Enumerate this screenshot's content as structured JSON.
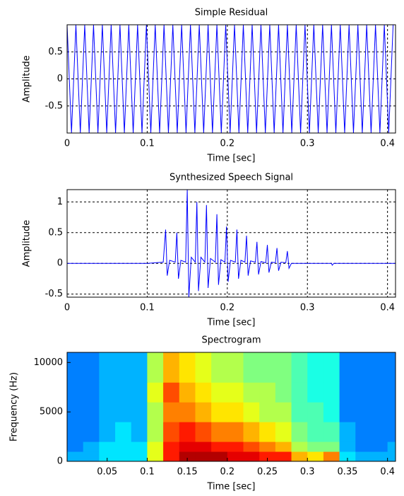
{
  "chart_data": [
    {
      "type": "line",
      "title": "Simple Residual",
      "xlabel": "Time [sec]",
      "ylabel": "Amplitude",
      "color": "#0000ff",
      "grid": true,
      "xlim": [
        0,
        0.41
      ],
      "ylim": [
        -1,
        1
      ],
      "xticks": [
        0,
        0.1,
        0.2,
        0.3,
        0.4
      ],
      "yticks": [
        -0.5,
        0,
        0.5
      ],
      "x": [
        0,
        0.0055,
        0.011,
        0.0165,
        0.022,
        0.0275,
        0.033,
        0.0385,
        0.044,
        0.0495,
        0.055,
        0.0605,
        0.066,
        0.0715,
        0.077,
        0.0825,
        0.088,
        0.0935,
        0.099,
        0.1045,
        0.11,
        0.1155,
        0.121,
        0.1265,
        0.132,
        0.1375,
        0.143,
        0.1485,
        0.154,
        0.1595,
        0.165,
        0.1705,
        0.176,
        0.1815,
        0.187,
        0.1925,
        0.198,
        0.2035,
        0.209,
        0.2145,
        0.22,
        0.2255,
        0.231,
        0.2365,
        0.242,
        0.2475,
        0.253,
        0.2585,
        0.264,
        0.2695,
        0.275,
        0.2805,
        0.286,
        0.2915,
        0.297,
        0.3025,
        0.308,
        0.3135,
        0.319,
        0.3245,
        0.33,
        0.3355,
        0.341,
        0.3465,
        0.352,
        0.3575,
        0.363,
        0.3685,
        0.374,
        0.3795,
        0.385,
        0.3905,
        0.396,
        0.4015,
        0.407
      ],
      "values": [
        1,
        -1,
        1,
        -1,
        1,
        -1,
        1,
        -1,
        1,
        -1,
        1,
        -1,
        1,
        -1,
        1,
        -1,
        1,
        -1,
        1,
        -1,
        1,
        -1,
        1,
        -1,
        1,
        -1,
        1,
        -1,
        1,
        -1,
        1,
        -1,
        1,
        -1,
        1,
        -1,
        1,
        -1,
        1,
        -1,
        1,
        -1,
        1,
        -1,
        1,
        -1,
        1,
        -1,
        1,
        -1,
        1,
        -1,
        1,
        -1,
        1,
        -1,
        1,
        -1,
        1,
        -1,
        1,
        -1,
        1,
        -1,
        1,
        -1,
        1,
        -1,
        1,
        -1,
        1,
        -1,
        1,
        -1,
        1
      ]
    },
    {
      "type": "line",
      "title": "Synthesized Speech Signal",
      "xlabel": "Time [sec]",
      "ylabel": "Amplitude",
      "color": "#0000ff",
      "grid": true,
      "xlim": [
        0,
        0.41
      ],
      "ylim": [
        -0.55,
        1.2
      ],
      "xticks": [
        0,
        0.1,
        0.2,
        0.3,
        0.4
      ],
      "yticks": [
        -0.5,
        0,
        0.5,
        1
      ],
      "x": [
        0,
        0.1,
        0.12,
        0.123,
        0.125,
        0.128,
        0.135,
        0.137,
        0.139,
        0.142,
        0.148,
        0.15,
        0.152,
        0.155,
        0.16,
        0.162,
        0.164,
        0.167,
        0.172,
        0.174,
        0.176,
        0.179,
        0.185,
        0.187,
        0.189,
        0.192,
        0.197,
        0.199,
        0.201,
        0.204,
        0.21,
        0.212,
        0.214,
        0.217,
        0.222,
        0.224,
        0.226,
        0.229,
        0.235,
        0.237,
        0.239,
        0.242,
        0.248,
        0.25,
        0.252,
        0.255,
        0.26,
        0.262,
        0.264,
        0.267,
        0.273,
        0.275,
        0.277,
        0.28,
        0.33,
        0.331,
        0.333,
        0.41
      ],
      "values": [
        0,
        0,
        0.02,
        0.55,
        -0.2,
        0.05,
        0.02,
        0.5,
        -0.25,
        0.05,
        0.02,
        1.2,
        -0.55,
        0.1,
        0.02,
        1.0,
        -0.45,
        0.1,
        0.02,
        0.95,
        -0.4,
        0.08,
        0.02,
        0.8,
        -0.35,
        0.06,
        0.02,
        0.6,
        -0.3,
        0.05,
        0.02,
        0.55,
        -0.25,
        0.05,
        0.02,
        0.45,
        -0.2,
        0.04,
        0.02,
        0.35,
        -0.18,
        0.03,
        0.01,
        0.3,
        -0.15,
        0.02,
        0.01,
        0.25,
        -0.12,
        0.02,
        0.01,
        0.2,
        -0.08,
        0,
        0,
        -0.03,
        0,
        0
      ]
    },
    {
      "type": "heatmap",
      "title": "Spectrogram",
      "xlabel": "Time [sec]",
      "ylabel": "Frequency (Hz)",
      "colormap": "jet",
      "grid": false,
      "xlim": [
        0,
        0.41
      ],
      "ylim": [
        0,
        11025
      ],
      "xticks": [
        0.05,
        0.1,
        0.15,
        0.2,
        0.25,
        0.3,
        0.35,
        0.4
      ],
      "yticks": [
        0,
        5000,
        10000
      ],
      "xbins": [
        0,
        0.02,
        0.04,
        0.06,
        0.08,
        0.1,
        0.12,
        0.14,
        0.16,
        0.18,
        0.2,
        0.22,
        0.24,
        0.26,
        0.28,
        0.3,
        0.32,
        0.34,
        0.36,
        0.38,
        0.4,
        0.41
      ],
      "ybins": [
        0,
        1000,
        2000,
        4000,
        6000,
        8000,
        11025
      ],
      "z": [
        [
          0.3,
          0.3,
          0.35,
          0.35,
          0.35,
          0.6,
          0.85,
          0.95,
          0.95,
          0.95,
          0.9,
          0.9,
          0.85,
          0.85,
          0.7,
          0.65,
          0.75,
          0.35,
          0.3,
          0.3,
          0.3
        ],
        [
          0.25,
          0.3,
          0.35,
          0.35,
          0.35,
          0.6,
          0.85,
          0.9,
          0.9,
          0.85,
          0.85,
          0.8,
          0.75,
          0.7,
          0.55,
          0.5,
          0.5,
          0.3,
          0.25,
          0.25,
          0.3
        ],
        [
          0.25,
          0.25,
          0.3,
          0.35,
          0.3,
          0.55,
          0.8,
          0.85,
          0.8,
          0.75,
          0.75,
          0.7,
          0.65,
          0.6,
          0.5,
          0.45,
          0.45,
          0.3,
          0.25,
          0.25,
          0.25
        ],
        [
          0.25,
          0.25,
          0.3,
          0.3,
          0.3,
          0.55,
          0.75,
          0.75,
          0.7,
          0.65,
          0.65,
          0.6,
          0.55,
          0.55,
          0.45,
          0.45,
          0.4,
          0.25,
          0.25,
          0.25,
          0.25
        ],
        [
          0.25,
          0.25,
          0.3,
          0.3,
          0.3,
          0.6,
          0.8,
          0.7,
          0.65,
          0.6,
          0.6,
          0.55,
          0.55,
          0.5,
          0.45,
          0.4,
          0.4,
          0.25,
          0.25,
          0.25,
          0.25
        ],
        [
          0.25,
          0.25,
          0.3,
          0.3,
          0.3,
          0.55,
          0.7,
          0.65,
          0.6,
          0.55,
          0.55,
          0.5,
          0.5,
          0.5,
          0.45,
          0.4,
          0.4,
          0.25,
          0.25,
          0.25,
          0.25
        ]
      ]
    }
  ]
}
